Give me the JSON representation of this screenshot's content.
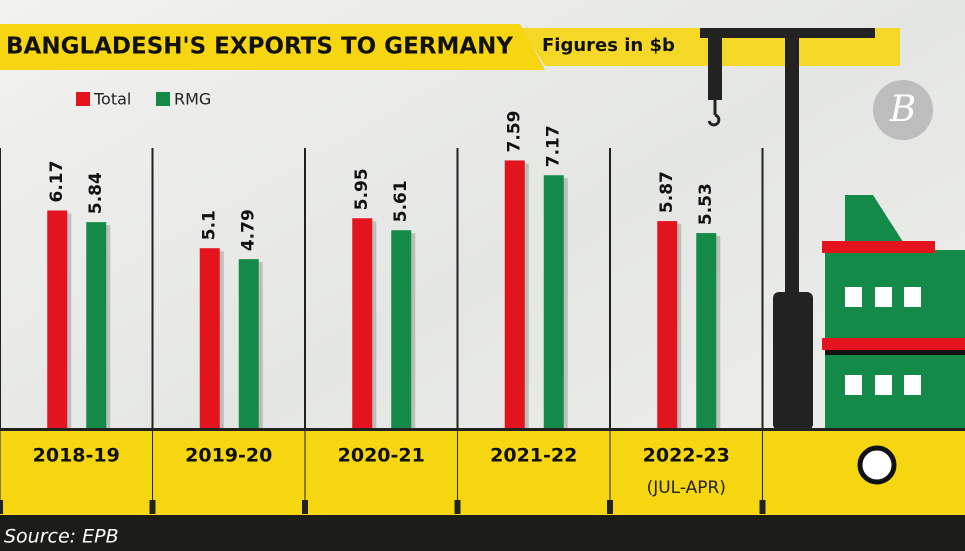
{
  "chart_data": {
    "type": "bar",
    "title": "BANGLADESH'S EXPORTS TO GERMANY",
    "subtitle": "Figures in $b",
    "source": "Source: EPB",
    "categories": [
      "2018-19",
      "2019-20",
      "2020-21",
      "2021-22",
      "2022-23"
    ],
    "annotation": "(JUL-APR)",
    "series": [
      {
        "name": "Total",
        "color": "#e3141e",
        "values": [
          6.17,
          5.1,
          5.95,
          7.59,
          5.87
        ]
      },
      {
        "name": "RMG",
        "color": "#138a48",
        "values": [
          5.84,
          4.79,
          5.61,
          7.17,
          5.53
        ]
      }
    ],
    "ylim": [
      0,
      8
    ]
  }
}
